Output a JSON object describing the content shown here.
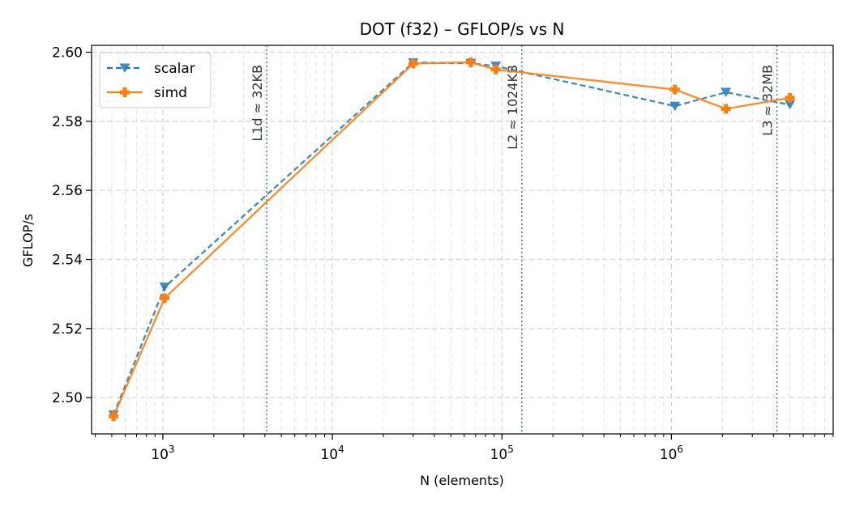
{
  "chart_data": {
    "type": "line",
    "title": "DOT (f32) – GFLOP/s vs N",
    "xlabel": "N (elements)",
    "ylabel": "GFLOP/s",
    "xscale": "log",
    "xlim": [
      380,
      9000000
    ],
    "ylim": [
      2.4895,
      2.602
    ],
    "x_ticks": [
      {
        "value": 1000,
        "base": "10",
        "exp": "3"
      },
      {
        "value": 10000,
        "base": "10",
        "exp": "4"
      },
      {
        "value": 100000,
        "base": "10",
        "exp": "5"
      },
      {
        "value": 1000000,
        "base": "10",
        "exp": "6"
      }
    ],
    "y_ticks": [
      {
        "value": 2.5,
        "label": "2.50"
      },
      {
        "value": 2.52,
        "label": "2.52"
      },
      {
        "value": 2.54,
        "label": "2.54"
      },
      {
        "value": 2.56,
        "label": "2.56"
      },
      {
        "value": 2.58,
        "label": "2.58"
      },
      {
        "value": 2.6,
        "label": "2.60"
      }
    ],
    "grid": true,
    "legend_position": "top-left",
    "series": [
      {
        "name": "scalar",
        "color": "#1f77b4",
        "linestyle": "dashed",
        "marker": "triangle-down",
        "x": [
          512,
          1024,
          30000,
          65536,
          92000,
          1048576,
          2097152,
          5000000
        ],
        "y": [
          2.495,
          2.532,
          2.597,
          2.5968,
          2.596,
          2.5844,
          2.5884,
          2.5848
        ]
      },
      {
        "name": "simd",
        "color": "#ff7f0e",
        "linestyle": "solid",
        "marker": "plus",
        "x": [
          512,
          1024,
          30000,
          65536,
          92000,
          1048576,
          2097152,
          5000000
        ],
        "y": [
          2.4946,
          2.5288,
          2.5967,
          2.5971,
          2.595,
          2.5892,
          2.5836,
          2.5868
        ]
      }
    ],
    "annotations": [
      {
        "x": 4096,
        "label": "L1d ≈ 32KB"
      },
      {
        "x": 131072,
        "label": "L2  ≈ 1024KB"
      },
      {
        "x": 4194304,
        "label": "L3  ≈ 32MB"
      }
    ]
  }
}
